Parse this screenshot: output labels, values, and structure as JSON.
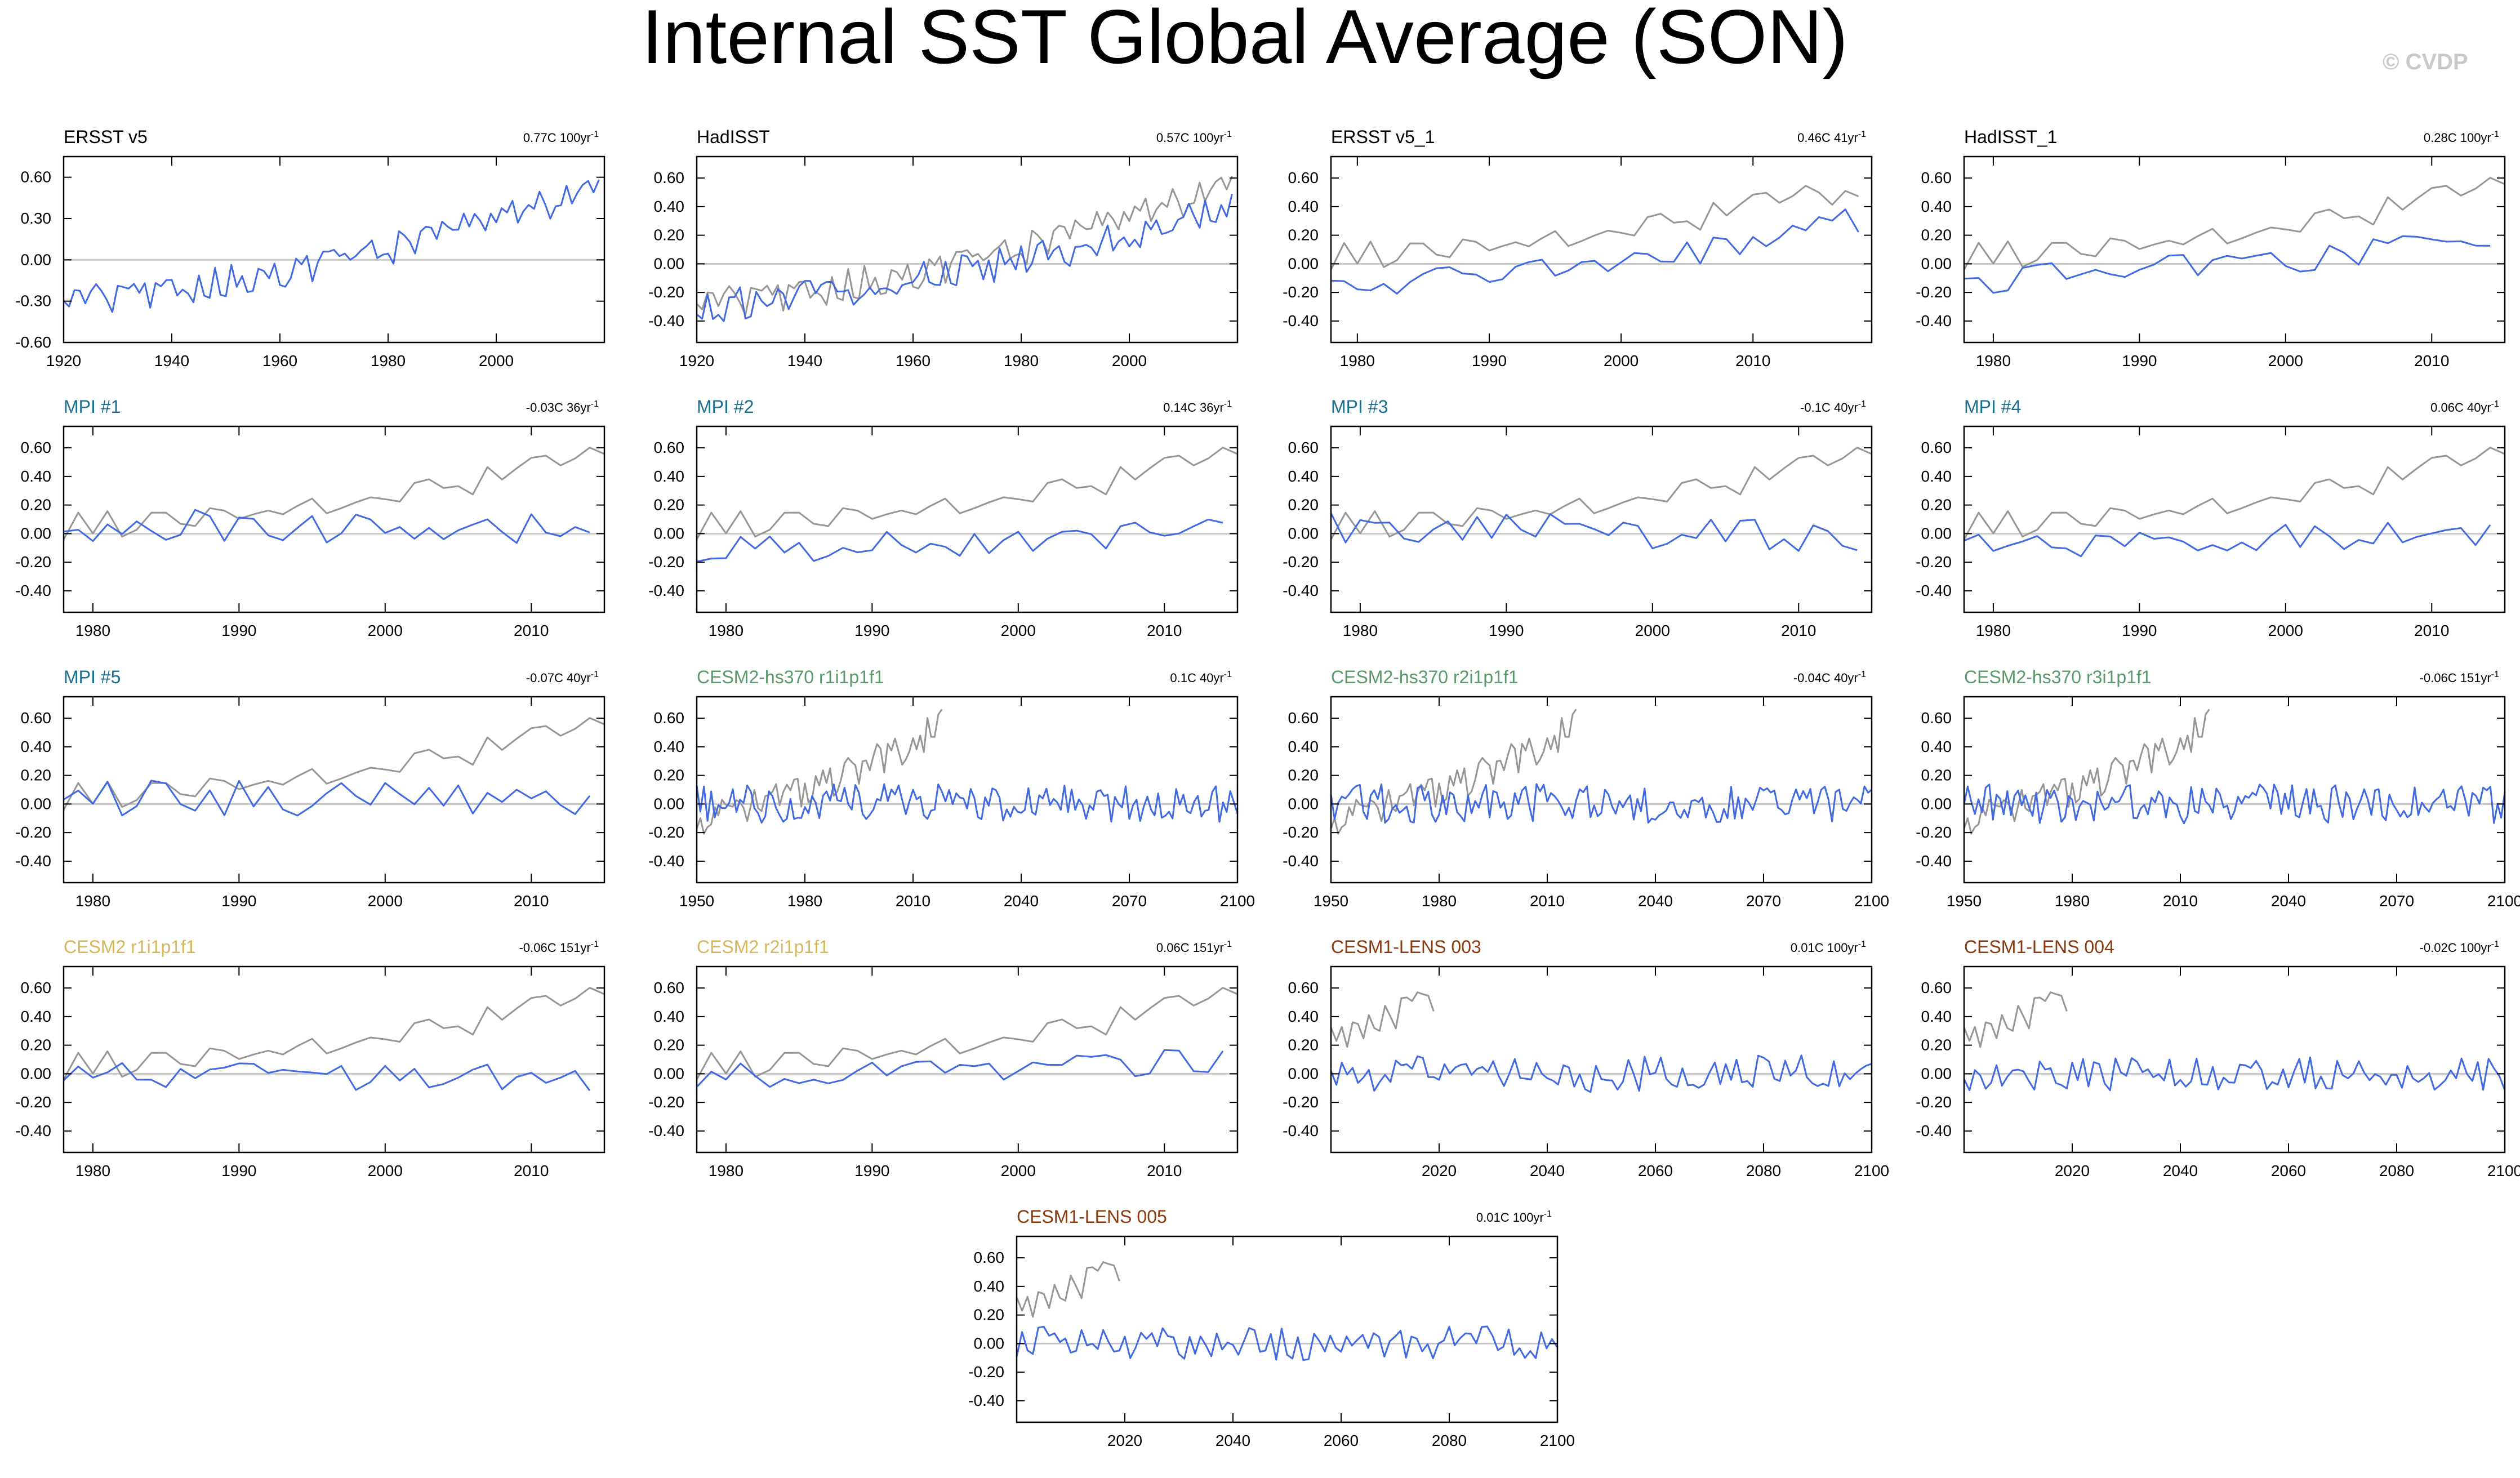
{
  "page": {
    "title": "Internal SST Global Average (SON)",
    "watermark": "© CVDP"
  },
  "colors": {
    "obs_line": "#969696",
    "model_line": "#4169e1",
    "zero_line": "#c8c8c8",
    "ersst_title": "#000000",
    "mpi_title": "#1b6e8c",
    "cesm2_hs370_title": "#5a9a6a",
    "cesm2_title": "#d6b85a",
    "lens_title": "#8b3a0f"
  },
  "chart_data": [
    {
      "type": "line",
      "title": "ERSST v5",
      "title_color": "#000000",
      "trend": "0.77C 100yr",
      "trend_exp": "-1",
      "xlim": [
        1920,
        2020
      ],
      "x_ticks": [
        1920,
        1940,
        1960,
        1980,
        2000
      ],
      "ylim": [
        -0.6,
        0.75
      ],
      "y_ticks": [
        "0.60",
        "0.30",
        "0.00",
        "-0.30",
        "-0.60"
      ],
      "y_tick_values": [
        0.6,
        0.3,
        0,
        -0.3,
        -0.6
      ],
      "series": [
        {
          "role": "model",
          "gen": {
            "start": 1920,
            "end": 2019,
            "base0": -0.3,
            "base1": 0.52,
            "amp": 0.12,
            "seed": 1
          }
        }
      ]
    },
    {
      "type": "line",
      "title": "HadISST",
      "title_color": "#000000",
      "trend": "0.57C 100yr",
      "trend_exp": "-1",
      "xlim": [
        1920,
        2020
      ],
      "x_ticks": [
        1920,
        1940,
        1960,
        1980,
        2000
      ],
      "ylim": [
        -0.55,
        0.75
      ],
      "y_ticks": [
        "0.60",
        "0.40",
        "0.20",
        "0.00",
        "-0.20",
        "-0.40"
      ],
      "y_tick_values": [
        0.6,
        0.4,
        0.2,
        0,
        -0.2,
        -0.4
      ],
      "series": [
        {
          "role": "obs",
          "gen": {
            "start": 1920,
            "end": 2019,
            "base0": -0.28,
            "base1": 0.55,
            "amp": 0.12,
            "seed": 1
          }
        },
        {
          "role": "model",
          "gen": {
            "start": 1920,
            "end": 2019,
            "base0": -0.3,
            "base1": 0.4,
            "amp": 0.12,
            "seed": 2
          }
        }
      ]
    },
    {
      "type": "line",
      "title": "ERSST v5_1",
      "title_color": "#000000",
      "trend": "0.46C 41yr",
      "trend_exp": "-1",
      "xlim": [
        1978,
        2019
      ],
      "x_ticks": [
        1980,
        1990,
        2000,
        2010
      ],
      "ylim": [
        -0.55,
        0.75
      ],
      "y_ticks": [
        "0.60",
        "0.40",
        "0.20",
        "0.00",
        "-0.20",
        "-0.40"
      ],
      "y_tick_values": [
        0.6,
        0.4,
        0.2,
        0,
        -0.2,
        -0.4
      ],
      "series": [
        {
          "role": "obs",
          "gen": {
            "start": 1978,
            "end": 2018,
            "base0": 0.05,
            "base1": 0.55,
            "amp": 0.1,
            "seed": 3
          }
        },
        {
          "role": "model",
          "gen": {
            "start": 1978,
            "end": 2018,
            "base0": -0.18,
            "base1": 0.3,
            "amp": 0.1,
            "seed": 4
          }
        }
      ]
    },
    {
      "type": "line",
      "title": "HadISST_1",
      "title_color": "#000000",
      "trend": "0.28C 100yr",
      "trend_exp": "-1",
      "xlim": [
        1978,
        2015
      ],
      "x_ticks": [
        1980,
        1990,
        2000,
        2010
      ],
      "ylim": [
        -0.55,
        0.75
      ],
      "y_ticks": [
        "0.60",
        "0.40",
        "0.20",
        "0.00",
        "-0.20",
        "-0.40"
      ],
      "y_tick_values": [
        0.6,
        0.4,
        0.2,
        0,
        -0.2,
        -0.4
      ],
      "series": [
        {
          "role": "obs",
          "gen": {
            "start": 1978,
            "end": 2015,
            "base0": 0.05,
            "base1": 0.55,
            "amp": 0.1,
            "seed": 3
          }
        },
        {
          "role": "model",
          "gen": {
            "start": 1978,
            "end": 2014,
            "base0": -0.12,
            "base1": 0.2,
            "amp": 0.1,
            "seed": 5
          }
        }
      ]
    },
    {
      "type": "line",
      "title": "MPI #1",
      "title_color": "#1b6e8c",
      "trend": "-0.03C 36yr",
      "trend_exp": "-1",
      "xlim": [
        1978,
        2015
      ],
      "x_ticks": [
        1980,
        1990,
        2000,
        2010
      ],
      "ylim": [
        -0.55,
        0.75
      ],
      "y_ticks": [
        "0.60",
        "0.40",
        "0.20",
        "0.00",
        "-0.20",
        "-0.40"
      ],
      "y_tick_values": [
        0.6,
        0.4,
        0.2,
        0,
        -0.2,
        -0.4
      ],
      "series": [
        {
          "role": "obs",
          "gen": {
            "start": 1978,
            "end": 2015,
            "base0": 0.05,
            "base1": 0.55,
            "amp": 0.1,
            "seed": 3
          }
        },
        {
          "role": "model",
          "gen": {
            "start": 1978,
            "end": 2014,
            "base0": 0.05,
            "base1": 0.02,
            "amp": 0.12,
            "seed": 6
          }
        }
      ]
    },
    {
      "type": "line",
      "title": "MPI #2",
      "title_color": "#1b6e8c",
      "trend": "0.14C 36yr",
      "trend_exp": "-1",
      "xlim": [
        1978,
        2015
      ],
      "x_ticks": [
        1980,
        1990,
        2000,
        2010
      ],
      "ylim": [
        -0.55,
        0.75
      ],
      "y_ticks": [
        "0.60",
        "0.40",
        "0.20",
        "0.00",
        "-0.20",
        "-0.40"
      ],
      "y_tick_values": [
        0.6,
        0.4,
        0.2,
        0,
        -0.2,
        -0.4
      ],
      "series": [
        {
          "role": "obs",
          "gen": {
            "start": 1978,
            "end": 2015,
            "base0": 0.05,
            "base1": 0.55,
            "amp": 0.1,
            "seed": 3
          }
        },
        {
          "role": "model",
          "gen": {
            "start": 1978,
            "end": 2014,
            "base0": -0.12,
            "base1": 0.05,
            "amp": 0.1,
            "seed": 7
          }
        }
      ]
    },
    {
      "type": "line",
      "title": "MPI #3",
      "title_color": "#1b6e8c",
      "trend": "-0.1C 40yr",
      "trend_exp": "-1",
      "xlim": [
        1978,
        2015
      ],
      "x_ticks": [
        1980,
        1990,
        2000,
        2010
      ],
      "ylim": [
        -0.55,
        0.75
      ],
      "y_ticks": [
        "0.60",
        "0.40",
        "0.20",
        "0.00",
        "-0.20",
        "-0.40"
      ],
      "y_tick_values": [
        0.6,
        0.4,
        0.2,
        0,
        -0.2,
        -0.4
      ],
      "series": [
        {
          "role": "obs",
          "gen": {
            "start": 1978,
            "end": 2015,
            "base0": 0.05,
            "base1": 0.55,
            "amp": 0.1,
            "seed": 3
          }
        },
        {
          "role": "model",
          "gen": {
            "start": 1978,
            "end": 2014,
            "base0": 0.05,
            "base1": -0.05,
            "amp": 0.12,
            "seed": 8
          }
        }
      ]
    },
    {
      "type": "line",
      "title": "MPI #4",
      "title_color": "#1b6e8c",
      "trend": "0.06C 40yr",
      "trend_exp": "-1",
      "xlim": [
        1978,
        2015
      ],
      "x_ticks": [
        1980,
        1990,
        2000,
        2010
      ],
      "ylim": [
        -0.55,
        0.75
      ],
      "y_ticks": [
        "0.60",
        "0.40",
        "0.20",
        "0.00",
        "-0.20",
        "-0.40"
      ],
      "y_tick_values": [
        0.6,
        0.4,
        0.2,
        0,
        -0.2,
        -0.4
      ],
      "series": [
        {
          "role": "obs",
          "gen": {
            "start": 1978,
            "end": 2015,
            "base0": 0.05,
            "base1": 0.55,
            "amp": 0.1,
            "seed": 3
          }
        },
        {
          "role": "model",
          "gen": {
            "start": 1978,
            "end": 2014,
            "base0": -0.08,
            "base1": 0.02,
            "amp": 0.1,
            "seed": 9
          }
        }
      ]
    },
    {
      "type": "line",
      "title": "MPI #5",
      "title_color": "#1b6e8c",
      "trend": "-0.07C 40yr",
      "trend_exp": "-1",
      "xlim": [
        1978,
        2015
      ],
      "x_ticks": [
        1980,
        1990,
        2000,
        2010
      ],
      "ylim": [
        -0.55,
        0.75
      ],
      "y_ticks": [
        "0.60",
        "0.40",
        "0.20",
        "0.00",
        "-0.20",
        "-0.40"
      ],
      "y_tick_values": [
        0.6,
        0.4,
        0.2,
        0,
        -0.2,
        -0.4
      ],
      "series": [
        {
          "role": "obs",
          "gen": {
            "start": 1978,
            "end": 2015,
            "base0": 0.05,
            "base1": 0.55,
            "amp": 0.1,
            "seed": 3
          }
        },
        {
          "role": "model",
          "gen": {
            "start": 1978,
            "end": 2014,
            "base0": 0.05,
            "base1": 0.0,
            "amp": 0.13,
            "seed": 10
          }
        }
      ]
    },
    {
      "type": "line",
      "title": "CESM2-hs370 r1i1p1f1",
      "title_color": "#5a9a6a",
      "trend": "0.1C 40yr",
      "trend_exp": "-1",
      "xlim": [
        1950,
        2100
      ],
      "x_ticks": [
        1950,
        1980,
        2010,
        2040,
        2070,
        2100
      ],
      "ylim": [
        -0.55,
        0.75
      ],
      "y_ticks": [
        "0.60",
        "0.40",
        "0.20",
        "0.00",
        "-0.20",
        "-0.40"
      ],
      "y_tick_values": [
        0.6,
        0.4,
        0.2,
        0,
        -0.2,
        -0.4
      ],
      "series": [
        {
          "role": "obs",
          "gen": {
            "start": 1950,
            "end": 2018,
            "base0": -0.1,
            "base1": 0.55,
            "amp": 0.12,
            "seed": 11
          }
        },
        {
          "role": "model",
          "gen": {
            "start": 1950,
            "end": 2100,
            "base0": 0.0,
            "base1": 0.0,
            "amp": 0.14,
            "seed": 12
          }
        }
      ]
    },
    {
      "type": "line",
      "title": "CESM2-hs370 r2i1p1f1",
      "title_color": "#5a9a6a",
      "trend": "-0.04C 40yr",
      "trend_exp": "-1",
      "xlim": [
        1950,
        2100
      ],
      "x_ticks": [
        1950,
        1980,
        2010,
        2040,
        2070,
        2100
      ],
      "ylim": [
        -0.55,
        0.75
      ],
      "y_ticks": [
        "0.60",
        "0.40",
        "0.20",
        "0.00",
        "-0.20",
        "-0.40"
      ],
      "y_tick_values": [
        0.6,
        0.4,
        0.2,
        0,
        -0.2,
        -0.4
      ],
      "series": [
        {
          "role": "obs",
          "gen": {
            "start": 1950,
            "end": 2018,
            "base0": -0.1,
            "base1": 0.55,
            "amp": 0.12,
            "seed": 11
          }
        },
        {
          "role": "model",
          "gen": {
            "start": 1950,
            "end": 2100,
            "base0": 0.0,
            "base1": 0.0,
            "amp": 0.14,
            "seed": 13
          }
        }
      ]
    },
    {
      "type": "line",
      "title": "CESM2-hs370 r3i1p1f1",
      "title_color": "#5a9a6a",
      "trend": "-0.06C 151yr",
      "trend_exp": "-1",
      "xlim": [
        1950,
        2100
      ],
      "x_ticks": [
        1950,
        1980,
        2010,
        2040,
        2070,
        2100
      ],
      "ylim": [
        -0.55,
        0.75
      ],
      "y_ticks": [
        "0.60",
        "0.40",
        "0.20",
        "0.00",
        "-0.20",
        "-0.40"
      ],
      "y_tick_values": [
        0.6,
        0.4,
        0.2,
        0,
        -0.2,
        -0.4
      ],
      "series": [
        {
          "role": "obs",
          "gen": {
            "start": 1950,
            "end": 2018,
            "base0": -0.1,
            "base1": 0.55,
            "amp": 0.12,
            "seed": 11
          }
        },
        {
          "role": "model",
          "gen": {
            "start": 1950,
            "end": 2100,
            "base0": 0.0,
            "base1": 0.0,
            "amp": 0.14,
            "seed": 14
          }
        }
      ]
    },
    {
      "type": "line",
      "title": "CESM2 r1i1p1f1",
      "title_color": "#d6b85a",
      "trend": "-0.06C 151yr",
      "trend_exp": "-1",
      "xlim": [
        1978,
        2015
      ],
      "x_ticks": [
        1980,
        1990,
        2000,
        2010
      ],
      "ylim": [
        -0.55,
        0.75
      ],
      "y_ticks": [
        "0.60",
        "0.40",
        "0.20",
        "0.00",
        "-0.20",
        "-0.40"
      ],
      "y_tick_values": [
        0.6,
        0.4,
        0.2,
        0,
        -0.2,
        -0.4
      ],
      "series": [
        {
          "role": "obs",
          "gen": {
            "start": 1978,
            "end": 2015,
            "base0": 0.05,
            "base1": 0.55,
            "amp": 0.1,
            "seed": 3
          }
        },
        {
          "role": "model",
          "gen": {
            "start": 1978,
            "end": 2014,
            "base0": 0.0,
            "base1": -0.05,
            "amp": 0.1,
            "seed": 15
          }
        }
      ]
    },
    {
      "type": "line",
      "title": "CESM2 r2i1p1f1",
      "title_color": "#d6b85a",
      "trend": "0.06C 151yr",
      "trend_exp": "-1",
      "xlim": [
        1978,
        2015
      ],
      "x_ticks": [
        1980,
        1990,
        2000,
        2010
      ],
      "ylim": [
        -0.55,
        0.75
      ],
      "y_ticks": [
        "0.60",
        "0.40",
        "0.20",
        "0.00",
        "-0.20",
        "-0.40"
      ],
      "y_tick_values": [
        0.6,
        0.4,
        0.2,
        0,
        -0.2,
        -0.4
      ],
      "series": [
        {
          "role": "obs",
          "gen": {
            "start": 1978,
            "end": 2015,
            "base0": 0.05,
            "base1": 0.55,
            "amp": 0.1,
            "seed": 3
          }
        },
        {
          "role": "model",
          "gen": {
            "start": 1978,
            "end": 2014,
            "base0": 0.0,
            "base1": 0.08,
            "amp": 0.1,
            "seed": 16
          }
        }
      ]
    },
    {
      "type": "line",
      "title": "CESM1-LENS 003",
      "title_color": "#8b3a0f",
      "trend": "0.01C 100yr",
      "trend_exp": "-1",
      "xlim": [
        2000,
        2100
      ],
      "x_ticks": [
        2020,
        2040,
        2060,
        2080,
        2100
      ],
      "ylim": [
        -0.55,
        0.75
      ],
      "y_ticks": [
        "0.60",
        "0.40",
        "0.20",
        "0.00",
        "-0.20",
        "-0.40"
      ],
      "y_tick_values": [
        0.6,
        0.4,
        0.2,
        0,
        -0.2,
        -0.4
      ],
      "series": [
        {
          "role": "obs",
          "gen": {
            "start": 2000,
            "end": 2019,
            "base0": 0.25,
            "base1": 0.55,
            "amp": 0.12,
            "seed": 17
          }
        },
        {
          "role": "model",
          "gen": {
            "start": 2000,
            "end": 2100,
            "base0": 0.0,
            "base1": 0.0,
            "amp": 0.13,
            "seed": 18
          }
        }
      ]
    },
    {
      "type": "line",
      "title": "CESM1-LENS 004",
      "title_color": "#8b3a0f",
      "trend": "-0.02C 100yr",
      "trend_exp": "-1",
      "xlim": [
        2000,
        2100
      ],
      "x_ticks": [
        2020,
        2040,
        2060,
        2080,
        2100
      ],
      "ylim": [
        -0.55,
        0.75
      ],
      "y_ticks": [
        "0.60",
        "0.40",
        "0.20",
        "0.00",
        "-0.20",
        "-0.40"
      ],
      "y_tick_values": [
        0.6,
        0.4,
        0.2,
        0,
        -0.2,
        -0.4
      ],
      "series": [
        {
          "role": "obs",
          "gen": {
            "start": 2000,
            "end": 2019,
            "base0": 0.25,
            "base1": 0.55,
            "amp": 0.12,
            "seed": 17
          }
        },
        {
          "role": "model",
          "gen": {
            "start": 2000,
            "end": 2100,
            "base0": 0.0,
            "base1": 0.0,
            "amp": 0.12,
            "seed": 19
          }
        }
      ]
    },
    {
      "type": "line",
      "title": "CESM1-LENS 005",
      "title_color": "#8b3a0f",
      "trend": "0.01C 100yr",
      "trend_exp": "-1",
      "xlim": [
        2000,
        2100
      ],
      "x_ticks": [
        2020,
        2040,
        2060,
        2080,
        2100
      ],
      "ylim": [
        -0.55,
        0.75
      ],
      "y_ticks": [
        "0.60",
        "0.40",
        "0.20",
        "0.00",
        "-0.20",
        "-0.40"
      ],
      "y_tick_values": [
        0.6,
        0.4,
        0.2,
        0,
        -0.2,
        -0.4
      ],
      "series": [
        {
          "role": "obs",
          "gen": {
            "start": 2000,
            "end": 2019,
            "base0": 0.25,
            "base1": 0.55,
            "amp": 0.12,
            "seed": 17
          }
        },
        {
          "role": "model",
          "gen": {
            "start": 2000,
            "end": 2100,
            "base0": 0.0,
            "base1": 0.0,
            "amp": 0.12,
            "seed": 20
          }
        }
      ]
    }
  ]
}
